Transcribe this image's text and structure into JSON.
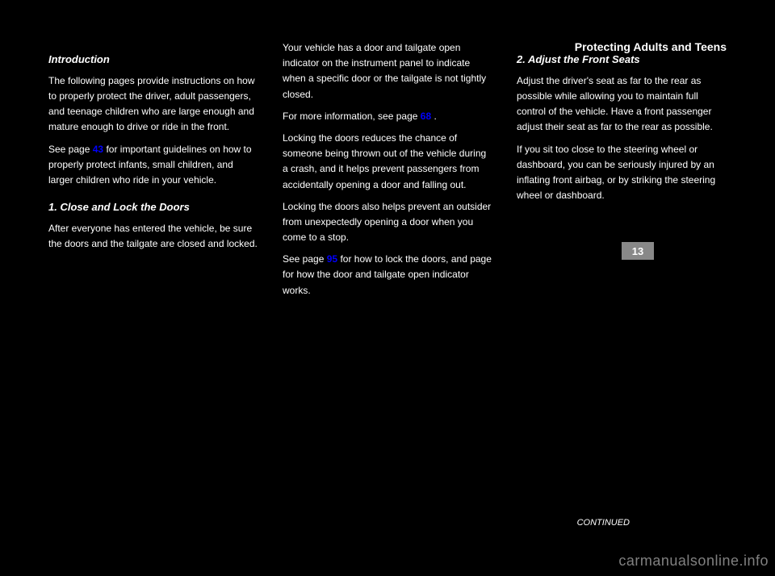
{
  "header": {
    "section_title": "Protecting Adults and Teens"
  },
  "col1": {
    "title1": "Introduction",
    "p1": "The following pages provide instructions on how to properly protect the driver, adult passengers, and teenage children who are large enough and mature enough to drive or ride in the front.",
    "p2": "See page",
    "ref1": "43",
    "p2b": "for important guidelines on how to properly protect infants, small children, and larger children who ride in your vehicle.",
    "title2": "1. Close and Lock the Doors",
    "p3": "After everyone has entered the vehicle, be sure the doors and the tailgate are closed and locked."
  },
  "col2": {
    "p1": "Your vehicle has a door and tailgate open indicator on the instrument panel to indicate when a specific door or the tailgate is not tightly closed.",
    "p2": "For more information, see page",
    "ref1": "68",
    "p2b": ".",
    "p3": "Locking the doors reduces the chance of someone being thrown out of the vehicle during a crash, and it helps prevent passengers from accidentally opening a door and falling out.",
    "p4": "Locking the doors also helps prevent an outsider from unexpectedly opening a door when you come to a stop.",
    "p5": "See page",
    "ref2": "95",
    "p5b": "for how to lock the doors, and page for how the door and tailgate open indicator works."
  },
  "col3": {
    "title1": "2. Adjust the Front Seats",
    "p1": "Adjust the driver's seat as far to the rear as possible while allowing you to maintain full control of the vehicle. Have a front passenger adjust their seat as far to the rear as possible.",
    "p2": "If you sit too close to the steering wheel or dashboard, you can be seriously injured by an inflating front airbag, or by striking the steering wheel or dashboard."
  },
  "page_number": "13",
  "continued_text": "CONTINUED",
  "watermark": "carmanualsonline.info"
}
